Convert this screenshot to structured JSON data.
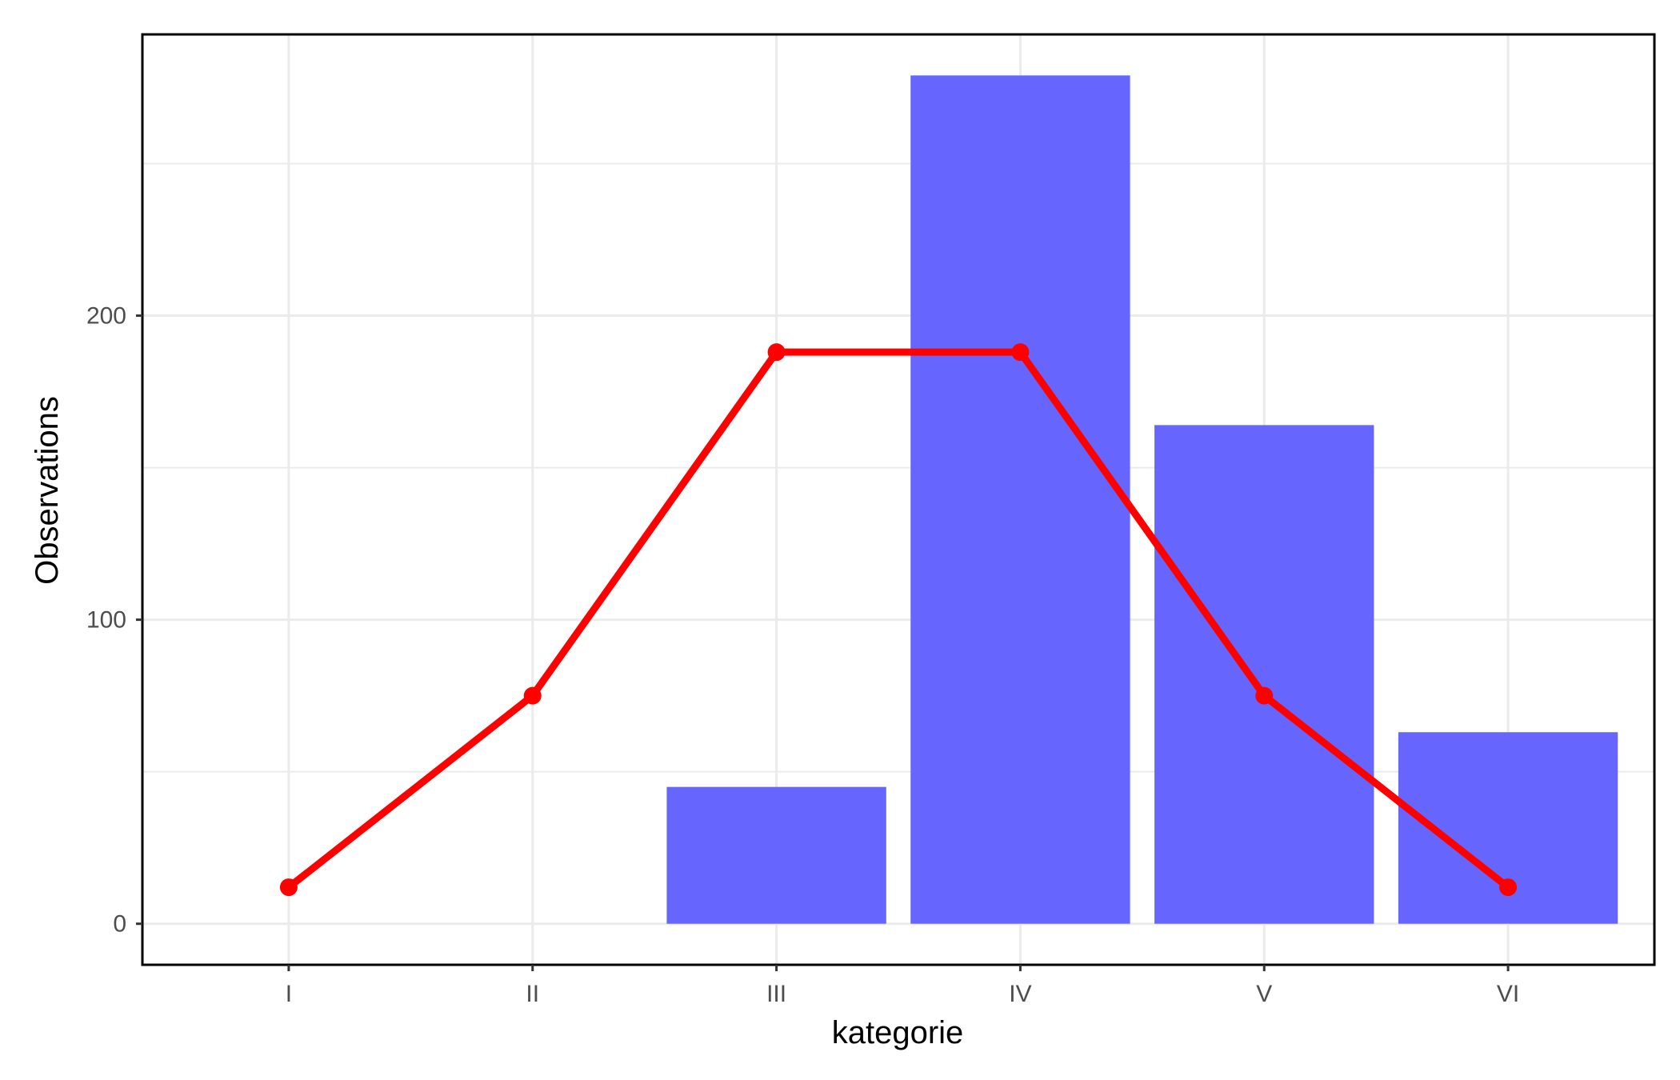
{
  "chart_data": {
    "type": "bar",
    "title": "",
    "xlabel": "kategorie",
    "ylabel": "Observations",
    "categories": [
      "I",
      "II",
      "III",
      "IV",
      "V",
      "VI"
    ],
    "bars": {
      "values": [
        0,
        0,
        45,
        279,
        164,
        63
      ],
      "color": "#6666ff"
    },
    "line": {
      "values": [
        12,
        75,
        188,
        188,
        75,
        12
      ],
      "color": "#ff0000"
    },
    "y_ticks": [
      "0",
      "100",
      "200"
    ],
    "y_tick_values": [
      0,
      100,
      200
    ],
    "ylim": [
      -13.5,
      292.5
    ],
    "grid": true,
    "legend": "none"
  },
  "colors": {
    "bar": "#6666ff",
    "line": "#ff0000",
    "grid": "#ebebeb",
    "frame": "#000000"
  }
}
